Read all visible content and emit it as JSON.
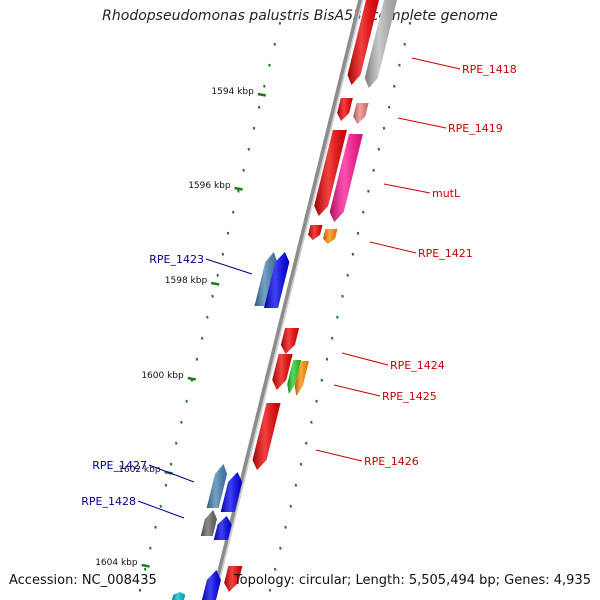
{
  "title": "Rhodopseudomonas palustris BisA53, complete genome",
  "footer": {
    "accession": "Accession: NC_008435",
    "summary": "Topology: circular; Length: 5,505,494 bp; Genes: 4,935"
  },
  "colors": {
    "backbone": "#8c8c8c",
    "tick": "#1e7a1e",
    "label_forward": "#cc0000",
    "label_reverse": "#00008b"
  },
  "ticks": [
    "1594 kbp",
    "1596 kbp",
    "1598 kbp",
    "1600 kbp",
    "1602 kbp",
    "1604 kbp"
  ],
  "gene_labels": [
    {
      "text": "RPE_1418",
      "strand": "forward"
    },
    {
      "text": "RPE_1419",
      "strand": "forward"
    },
    {
      "text": "mutL",
      "strand": "forward"
    },
    {
      "text": "RPE_1421",
      "strand": "forward"
    },
    {
      "text": "RPE_1423",
      "strand": "reverse"
    },
    {
      "text": "RPE_1424",
      "strand": "forward"
    },
    {
      "text": "RPE_1425",
      "strand": "forward"
    },
    {
      "text": "RPE_1426",
      "strand": "forward"
    },
    {
      "text": "RPE_1427",
      "strand": "reverse"
    },
    {
      "text": "RPE_1428",
      "strand": "reverse"
    }
  ]
}
